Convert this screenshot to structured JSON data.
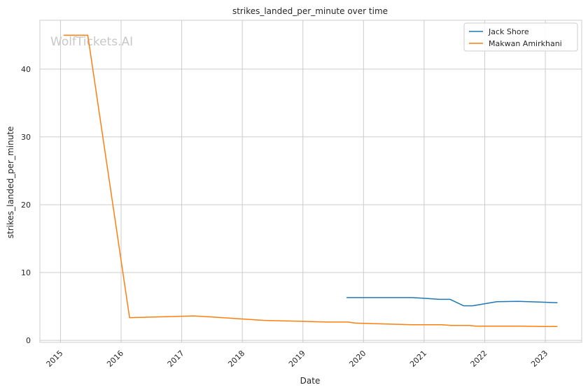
{
  "watermark": "WolfTickets.AI",
  "chart_data": {
    "type": "line",
    "title": "strikes_landed_per_minute over time",
    "xlabel": "Date",
    "ylabel": "strikes_landed_per_minute",
    "x_ticks": [
      "2015",
      "2016",
      "2017",
      "2018",
      "2019",
      "2020",
      "2021",
      "2022",
      "2023"
    ],
    "y_ticks": [
      0,
      10,
      20,
      30,
      40
    ],
    "xlim": [
      2014.66,
      2023.6
    ],
    "ylim": [
      -0.3,
      47.2
    ],
    "grid": true,
    "legend_position": "top-right",
    "series": [
      {
        "name": "Jack Shore",
        "color": "#1f77b4",
        "points": [
          [
            2019.72,
            6.3
          ],
          [
            2020.0,
            6.3
          ],
          [
            2020.8,
            6.3
          ],
          [
            2021.0,
            6.2
          ],
          [
            2021.25,
            6.05
          ],
          [
            2021.43,
            6.05
          ],
          [
            2021.65,
            5.1
          ],
          [
            2021.8,
            5.1
          ],
          [
            2022.2,
            5.7
          ],
          [
            2022.55,
            5.75
          ],
          [
            2022.9,
            5.65
          ],
          [
            2023.2,
            5.55
          ]
        ]
      },
      {
        "name": "Makwan Amirkhani",
        "color": "#ff7f0e",
        "points": [
          [
            2015.05,
            45.0
          ],
          [
            2015.45,
            45.0
          ],
          [
            2016.14,
            3.35
          ],
          [
            2017.2,
            3.6
          ],
          [
            2017.5,
            3.45
          ],
          [
            2018.0,
            3.15
          ],
          [
            2018.35,
            2.95
          ],
          [
            2019.0,
            2.8
          ],
          [
            2019.4,
            2.7
          ],
          [
            2019.75,
            2.7
          ],
          [
            2019.85,
            2.55
          ],
          [
            2020.2,
            2.45
          ],
          [
            2020.8,
            2.3
          ],
          [
            2021.3,
            2.3
          ],
          [
            2021.45,
            2.2
          ],
          [
            2021.75,
            2.2
          ],
          [
            2021.85,
            2.1
          ],
          [
            2022.55,
            2.1
          ],
          [
            2022.9,
            2.05
          ],
          [
            2023.2,
            2.05
          ]
        ]
      }
    ]
  }
}
